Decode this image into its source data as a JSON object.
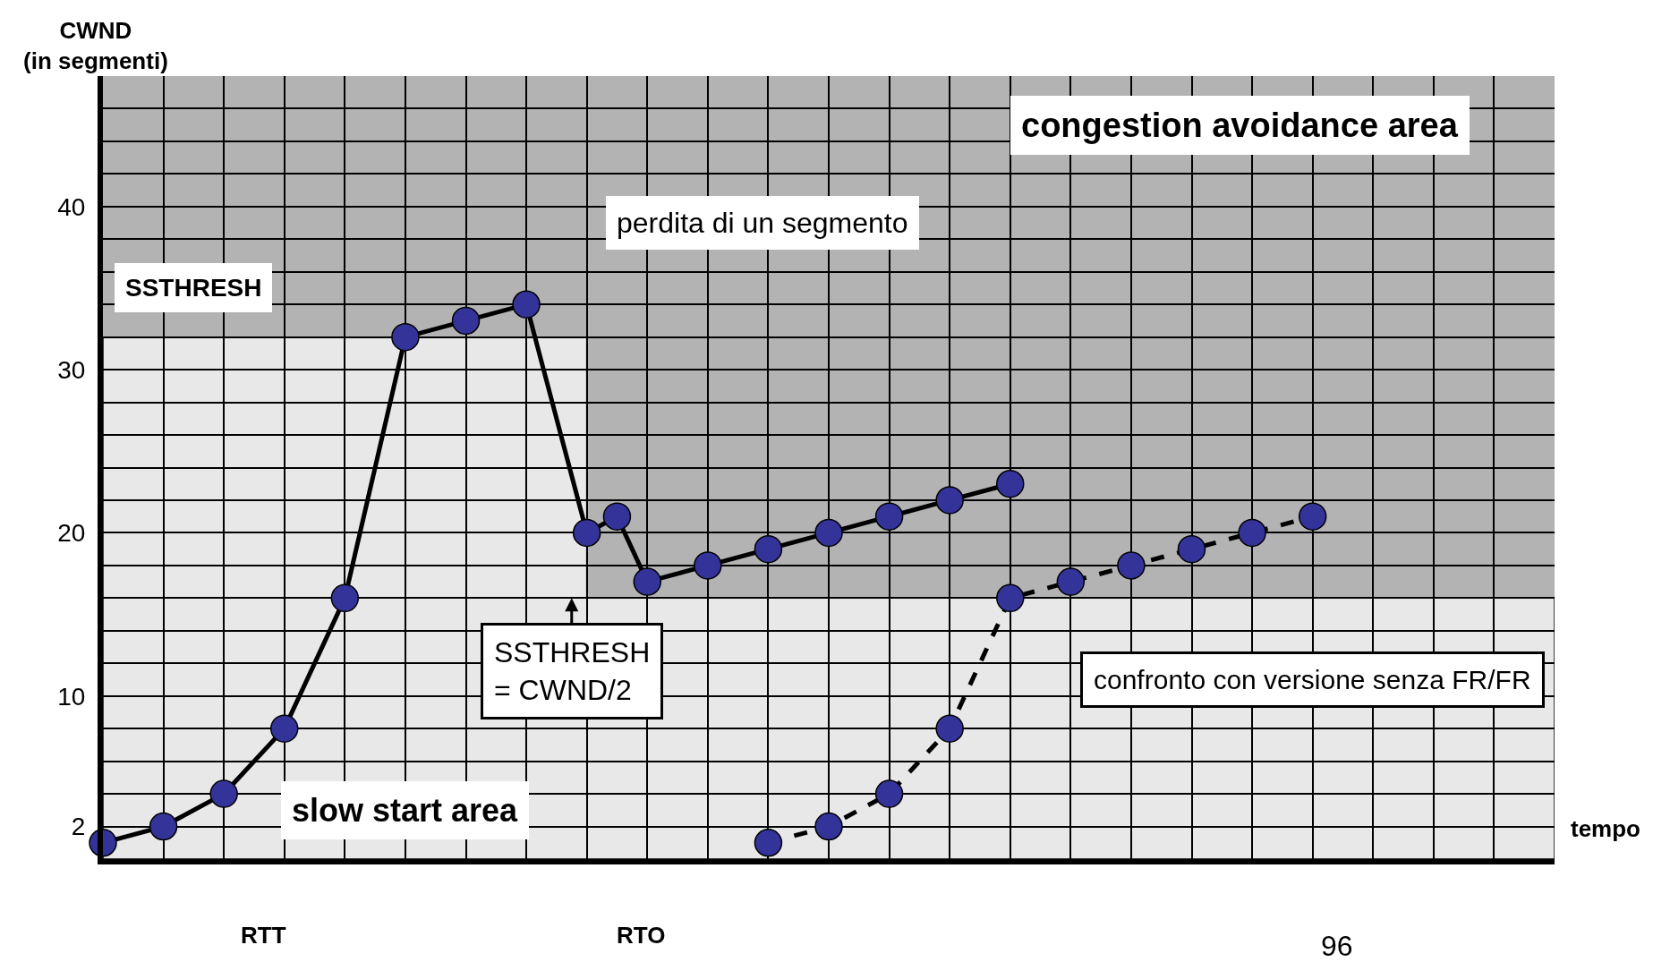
{
  "chart_data": {
    "type": "line",
    "ylabel": "CWND\n(in segmenti)",
    "xlabel": "tempo",
    "categories": [
      null,
      null,
      null,
      null,
      null,
      null,
      null,
      null,
      null,
      null,
      null,
      null,
      null,
      null,
      null,
      null,
      null,
      null,
      null,
      null,
      null,
      null,
      null,
      null,
      null,
      null,
      null,
      null,
      null,
      null,
      null,
      null,
      null,
      null,
      null,
      null,
      null,
      null,
      null,
      null,
      null,
      null,
      null,
      null,
      null,
      null,
      null,
      null,
      null
    ],
    "series": [
      {
        "type": "area",
        "color": "#e8e8e8",
        "values": [
          32,
          32,
          32,
          32,
          32,
          32,
          32,
          32,
          32,
          32,
          null,
          32,
          32,
          32,
          32,
          32,
          16,
          16,
          16,
          16,
          16,
          16,
          16,
          16,
          16,
          16,
          16,
          16,
          16,
          16,
          null,
          16,
          16,
          16,
          16,
          16,
          16,
          16,
          16,
          16,
          16,
          16,
          16,
          16,
          16,
          16,
          16,
          16,
          16
        ]
      },
      {
        "color": "#000000",
        "line_style": "solid",
        "marker": "circle",
        "values": [
          1,
          null,
          2,
          null,
          4,
          null,
          8,
          null,
          16,
          null,
          32,
          null,
          33,
          null,
          34,
          null,
          20,
          21,
          17,
          null,
          18,
          null,
          19,
          null,
          20,
          null,
          21,
          null,
          22,
          null,
          23,
          null,
          null,
          null,
          null,
          null,
          null,
          null,
          null,
          null,
          null,
          null,
          null,
          null,
          null,
          null,
          null,
          null,
          null
        ],
        "colors": [
          "#333399",
          null,
          "#333399",
          null,
          "#333399",
          null,
          "#333399",
          null,
          "#333399",
          null,
          "#333399",
          null,
          "#333399",
          null,
          "#333399",
          null,
          "#333399",
          "#333399",
          "#333399",
          null,
          "#333399",
          null,
          "#333399",
          null,
          "#333399",
          null,
          "#333399",
          null,
          "#333399",
          null,
          "#333399",
          null,
          null,
          null,
          null,
          null,
          null,
          null,
          null,
          null,
          null,
          null,
          null,
          null,
          null,
          null,
          null,
          null,
          null
        ]
      },
      {
        "color": "#000000",
        "line_style": "dashed",
        "marker": "circle",
        "values": [
          null,
          null,
          null,
          null,
          null,
          null,
          null,
          null,
          null,
          null,
          null,
          null,
          null,
          null,
          null,
          null,
          null,
          null,
          null,
          null,
          null,
          null,
          1,
          null,
          2,
          null,
          4,
          null,
          8,
          null,
          16,
          null,
          17,
          null,
          18,
          null,
          19,
          null,
          20,
          null,
          21,
          null,
          null,
          null,
          null,
          null,
          null,
          null,
          null
        ],
        "colors": [
          null,
          null,
          null,
          null,
          null,
          null,
          null,
          null,
          null,
          null,
          null,
          null,
          null,
          null,
          null,
          null,
          null,
          null,
          null,
          null,
          null,
          null,
          "#333399",
          null,
          "#333399",
          null,
          "#333399",
          null,
          "#333399",
          null,
          "#333399",
          null,
          "#333399",
          null,
          "#333399",
          null,
          "#333399",
          null,
          "#333399",
          null,
          "#333399",
          null,
          null,
          null,
          null,
          null,
          null,
          null,
          null
        ]
      }
    ],
    "ylim": [
      0,
      48
    ],
    "yticks": [
      {
        "value": 0,
        "label": null
      },
      2,
      {
        "value": 4,
        "label": null
      },
      {
        "value": 6,
        "label": null
      },
      {
        "value": 8,
        "label": null
      },
      10,
      {
        "value": 12,
        "label": null
      },
      {
        "value": 14,
        "label": null
      },
      {
        "value": 16,
        "label": null
      },
      {
        "value": 18,
        "label": null
      },
      20,
      {
        "value": 22,
        "label": null
      },
      {
        "value": 24,
        "label": null
      },
      {
        "value": 26,
        "label": null
      },
      {
        "value": 28,
        "label": null
      },
      30,
      {
        "value": 32,
        "label": null
      },
      {
        "value": 34,
        "label": null
      },
      {
        "value": 36,
        "label": null
      },
      {
        "value": 38,
        "label": null
      },
      40,
      {
        "value": 42,
        "label": null
      },
      {
        "value": 44,
        "label": null
      },
      {
        "value": 46,
        "label": null
      },
      {
        "value": 48,
        "label": null
      }
    ],
    "grid": true,
    "annotations": [
      "congestion avoidance area",
      "slow start area",
      "SSTHRESH",
      "perdita di un segmento",
      "SSTHRESH\n= CWND/2",
      "confronto con versione senza FR/FR",
      "RTT",
      "RTO",
      "96"
    ]
  }
}
